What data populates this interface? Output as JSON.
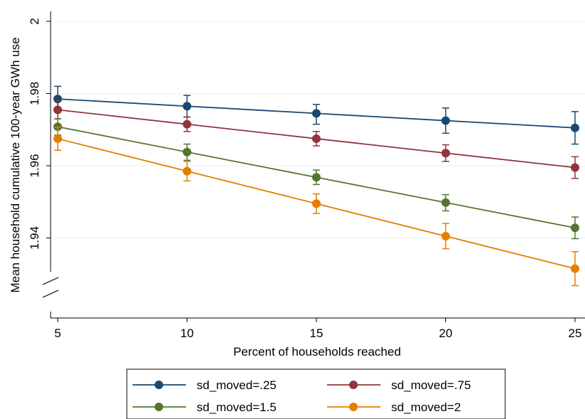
{
  "chart_data": {
    "type": "line",
    "x": [
      5,
      10,
      15,
      20,
      25
    ],
    "xlabel": "Percent of households reached",
    "ylabel": "Mean household cumulative 100-year GWh use",
    "xticks": [
      "5",
      "10",
      "15",
      "20",
      "25"
    ],
    "yticks": [
      "1.94",
      "1.96",
      "1.98",
      "2"
    ],
    "ylim": [
      1.92,
      2.0
    ],
    "y_axis_break": true,
    "grid": "horizontal",
    "legend_position": "bottom",
    "series": [
      {
        "name": "sd_moved=.25",
        "color": "#1a476f",
        "values": [
          1.9785,
          1.9765,
          1.9745,
          1.9725,
          1.9705
        ],
        "ci_low": [
          1.975,
          1.9735,
          1.9715,
          1.969,
          1.966
        ],
        "ci_high": [
          1.982,
          1.9795,
          1.977,
          1.976,
          1.975
        ]
      },
      {
        "name": "sd_moved=.75",
        "color": "#90353b",
        "values": [
          1.9755,
          1.9715,
          1.9675,
          1.9635,
          1.9595
        ],
        "ci_low": [
          1.973,
          1.9695,
          1.9655,
          1.9612,
          1.9565
        ],
        "ci_high": [
          1.978,
          1.9735,
          1.9695,
          1.9658,
          1.9625
        ]
      },
      {
        "name": "sd_moved=1.5",
        "color": "#55752f",
        "values": [
          1.9708,
          1.9638,
          1.9568,
          1.9498,
          1.9428
        ],
        "ci_low": [
          1.9685,
          1.9615,
          1.9548,
          1.9475,
          1.9398
        ],
        "ci_high": [
          1.973,
          1.966,
          1.9588,
          1.952,
          1.9458
        ]
      },
      {
        "name": "sd_moved=2",
        "color": "#e37e00",
        "values": [
          1.9675,
          1.9585,
          1.9495,
          1.9405,
          1.9315
        ],
        "ci_low": [
          1.9643,
          1.9558,
          1.9468,
          1.937,
          1.9268
        ],
        "ci_high": [
          1.9707,
          1.9612,
          1.9522,
          1.944,
          1.9362
        ]
      }
    ]
  }
}
